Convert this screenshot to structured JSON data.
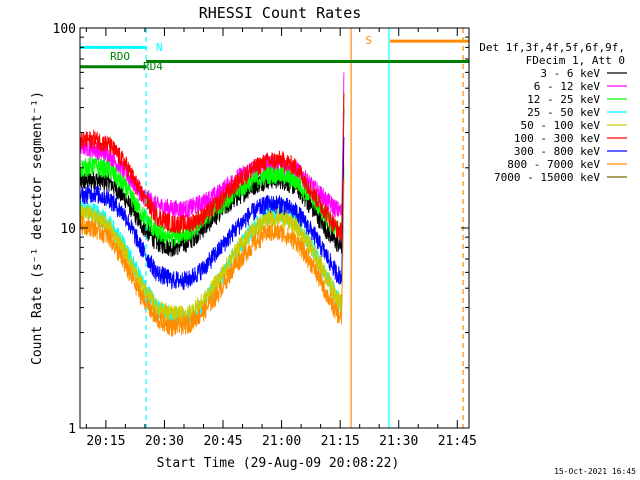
{
  "chart_data": {
    "type": "line",
    "title": "RHESSI Count Rates",
    "xlabel": "Start Time (29-Aug-09 20:08:22)",
    "ylabel": "Count Rate (s⁻¹ detector segment⁻¹)",
    "y_scale": "log",
    "ylim": [
      1,
      100
    ],
    "y_ticks": [
      "1",
      "10",
      "100"
    ],
    "x_ticks": [
      "20:15",
      "20:30",
      "20:45",
      "21:00",
      "21:15",
      "21:30",
      "21:45"
    ],
    "x_tick_minutes": [
      15,
      30,
      45,
      60,
      75,
      90,
      105
    ],
    "x_range_minutes": [
      8.37,
      108.0
    ],
    "grid": false,
    "legend_position": "right",
    "legend_header": [
      "Det 1f,3f,4f,5f,6f,9f,",
      "FDecim 1, Att 0"
    ],
    "series": [
      {
        "name": "3 - 6 keV",
        "color": "#000000",
        "x": [
          8.4,
          12,
          16,
          20,
          24,
          28,
          32,
          36,
          40,
          44,
          48,
          52,
          56,
          60,
          64,
          68,
          72,
          74,
          75.4
        ],
        "y": [
          17,
          17.5,
          17,
          14,
          10.5,
          8.5,
          8,
          8.5,
          10,
          12,
          14,
          16,
          17.5,
          17.5,
          16,
          12.5,
          9.5,
          8.5,
          8
        ]
      },
      {
        "name": "6 - 12 keV",
        "color": "#ff00ff",
        "x": [
          8.4,
          12,
          16,
          20,
          24,
          28,
          32,
          36,
          40,
          44,
          48,
          52,
          56,
          60,
          64,
          68,
          72,
          74,
          75.4
        ],
        "y": [
          26,
          25,
          23,
          19,
          15,
          13,
          12.5,
          12.5,
          13.5,
          15,
          17.5,
          19.5,
          21,
          21,
          19.5,
          16,
          13.5,
          12.5,
          12
        ]
      },
      {
        "name": "12 - 25 keV",
        "color": "#00ff00",
        "x": [
          8.4,
          12,
          16,
          20,
          24,
          28,
          32,
          36,
          40,
          44,
          48,
          52,
          56,
          60,
          64,
          68,
          72,
          74,
          75.4
        ],
        "y": [
          20,
          20.5,
          19.5,
          16,
          12,
          9.5,
          9,
          9.5,
          11,
          13,
          15,
          17,
          18.5,
          18.5,
          17,
          14,
          11,
          10,
          9.5
        ]
      },
      {
        "name": "25 - 50 keV",
        "color": "#00ffff",
        "x": [
          8.4,
          12,
          16,
          20,
          24,
          28,
          32,
          36,
          40,
          44,
          48,
          52,
          56,
          60,
          64,
          68,
          72,
          74,
          75.4
        ],
        "y": [
          12.5,
          12,
          10.5,
          8,
          5.5,
          4,
          3.6,
          3.6,
          4.2,
          5.5,
          7.5,
          9.5,
          11.5,
          12,
          10.5,
          8,
          5.5,
          4.5,
          4
        ]
      },
      {
        "name": "50 - 100 keV",
        "color": "#cccc00",
        "x": [
          8.4,
          12,
          16,
          20,
          24,
          28,
          32,
          36,
          40,
          44,
          48,
          52,
          56,
          60,
          64,
          68,
          72,
          74,
          75.4
        ],
        "y": [
          12,
          11.5,
          10,
          7.5,
          5.2,
          4,
          3.7,
          3.7,
          4.3,
          5.6,
          7.5,
          9.5,
          11,
          11.5,
          10,
          7.8,
          5.5,
          4.6,
          4.2
        ]
      },
      {
        "name": "100 - 300 keV",
        "color": "#ff0000",
        "x": [
          8.4,
          12,
          16,
          20,
          24,
          28,
          32,
          36,
          40,
          44,
          48,
          52,
          56,
          60,
          64,
          68,
          72,
          74,
          75.4
        ],
        "y": [
          27,
          28,
          26,
          21,
          15,
          11.5,
          10.5,
          10.5,
          11.5,
          13.5,
          16.5,
          19.5,
          21.5,
          22,
          20,
          15,
          11.5,
          10,
          9.5
        ]
      },
      {
        "name": "300 - 800 keV",
        "color": "#0000ff",
        "x": [
          8.4,
          12,
          16,
          20,
          24,
          28,
          32,
          36,
          40,
          44,
          48,
          52,
          56,
          60,
          64,
          68,
          72,
          74,
          75.4
        ],
        "y": [
          14.5,
          15,
          14,
          11.5,
          8,
          6,
          5.5,
          5.5,
          6.3,
          7.8,
          9.8,
          11.8,
          13.2,
          13.2,
          12,
          9.5,
          7,
          6,
          5.7
        ]
      },
      {
        "name": "800 - 7000 keV",
        "color": "#ff8c00",
        "x": [
          8.4,
          12,
          16,
          20,
          24,
          28,
          32,
          36,
          40,
          44,
          48,
          52,
          56,
          60,
          64,
          68,
          72,
          74,
          75.4
        ],
        "y": [
          10.5,
          10,
          9,
          6.5,
          4.6,
          3.5,
          3.2,
          3.3,
          3.8,
          4.8,
          6.5,
          8,
          9.5,
          9.5,
          8.5,
          6.5,
          4.5,
          3.8,
          3.5
        ]
      },
      {
        "name": "7000 - 15000 keV",
        "color": "#7a6a00",
        "x": [],
        "y": []
      }
    ],
    "annotations": {
      "flags": [
        {
          "label": "N",
          "color": "#00ffff",
          "level": 80,
          "x_range": [
            8.4,
            25.3
          ]
        },
        {
          "label": "RDO",
          "color": "#008000",
          "level": 68,
          "x_range": [
            25.3,
            108.0
          ]
        },
        {
          "label": "RD4",
          "color": "#008000",
          "level": 64,
          "x_range": [
            8.4,
            25.3
          ]
        },
        {
          "label": "S",
          "color": "#ff8c00",
          "level": 86,
          "x_range": [
            87.8,
            108.0
          ]
        }
      ],
      "vertical_lines": [
        {
          "x": 25.3,
          "color": "#00ffff",
          "style": "dashed"
        },
        {
          "x": 77.8,
          "color": "#ff8c00",
          "style": "solid"
        },
        {
          "x": 87.5,
          "color": "#00ffff",
          "style": "solid"
        },
        {
          "x": 106.5,
          "color": "#ff8c00",
          "style": "dashed"
        }
      ]
    },
    "timestamp": "15-Oct-2021 16:45"
  }
}
